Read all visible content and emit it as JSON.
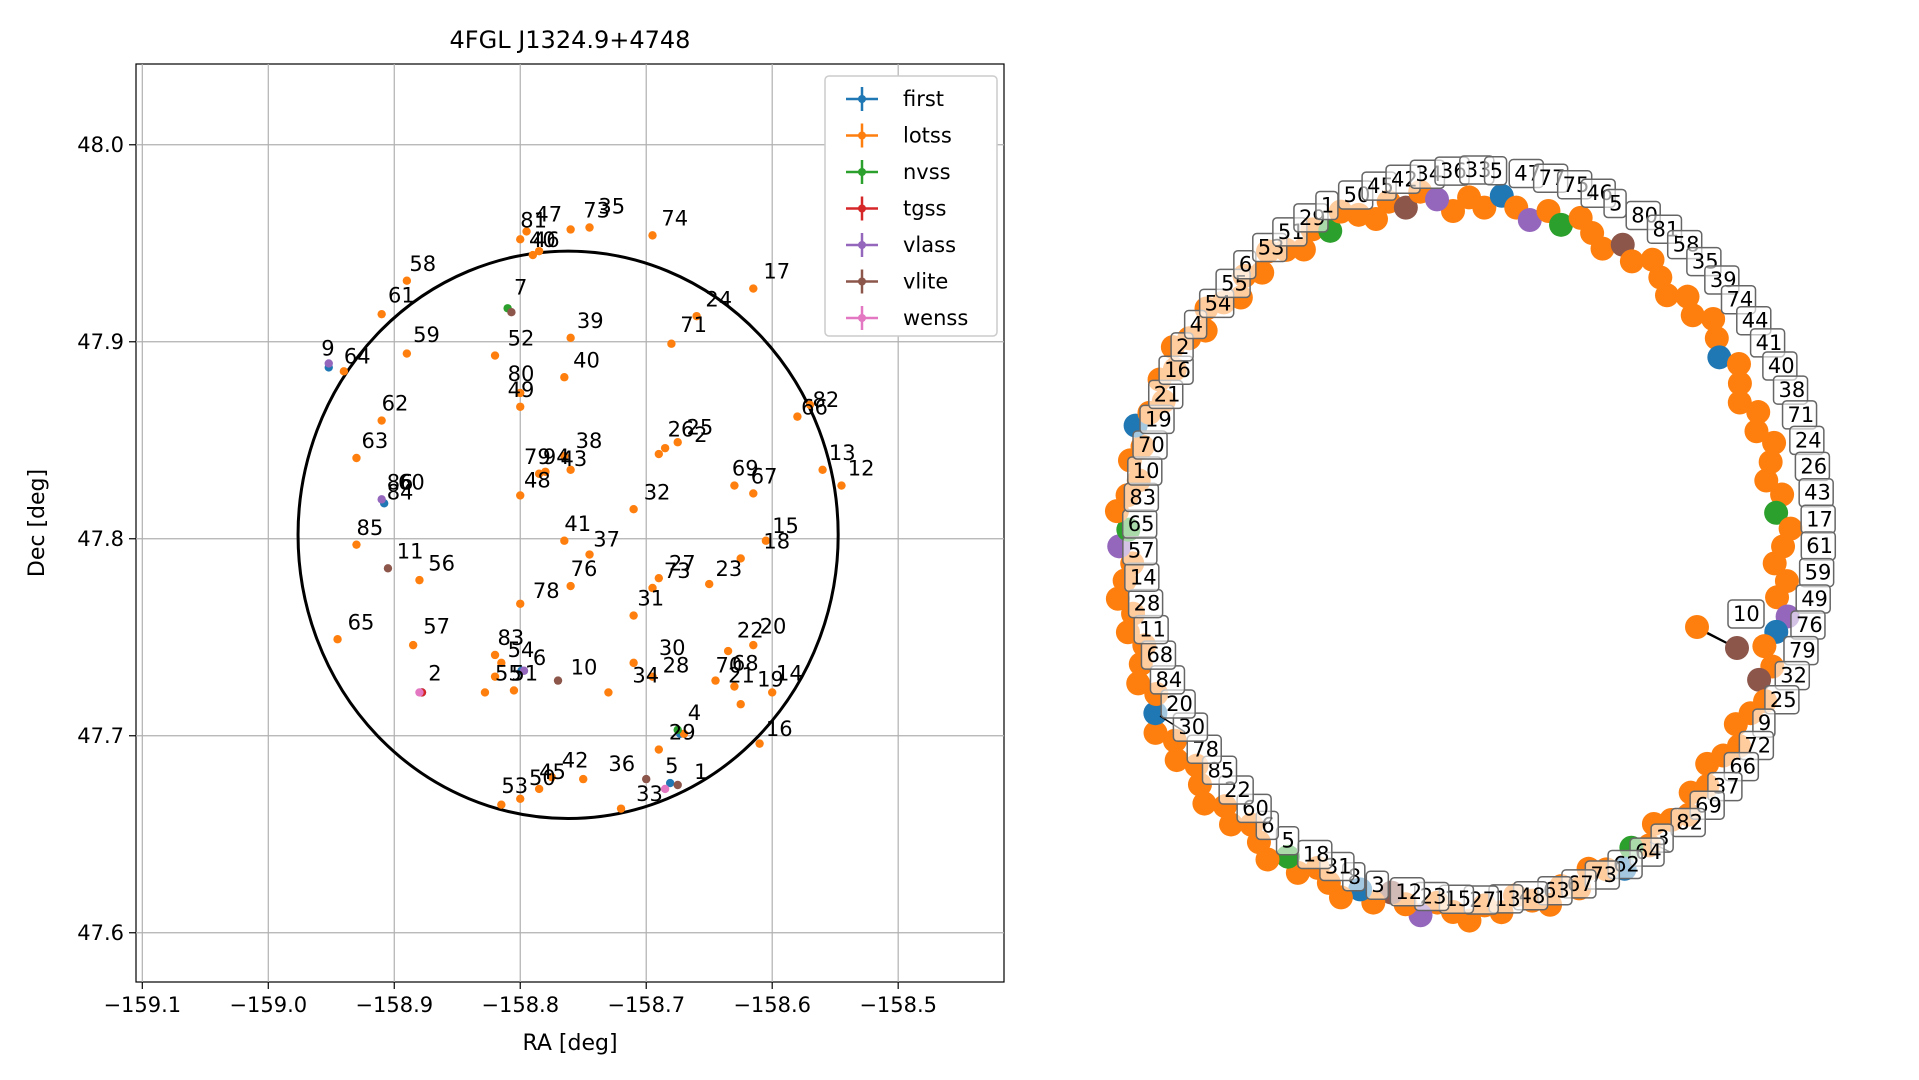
{
  "chart_data": [
    {
      "type": "scatter",
      "title": "4FGL J1324.9+4748",
      "xlabel": "RA [deg]",
      "ylabel": "Dec [deg]",
      "xlim": [
        -159.105,
        -158.416
      ],
      "ylim": [
        47.575,
        48.041
      ],
      "xticks": [
        -159.1,
        -159.0,
        -158.9,
        -158.8,
        -158.7,
        -158.6,
        -158.5
      ],
      "xtick_labels": [
        "−159.1",
        "−159.0",
        "−158.9",
        "−158.8",
        "−158.7",
        "−158.6",
        "−158.5"
      ],
      "yticks": [
        47.6,
        47.7,
        47.8,
        47.9,
        48.0
      ],
      "ytick_labels": [
        "47.6",
        "47.7",
        "47.8",
        "47.9",
        "48.0"
      ],
      "grid": true,
      "legend_position": "top-right",
      "circle": {
        "center": [
          -158.762,
          47.802
        ],
        "radius_deg": 0.144
      },
      "series": [
        {
          "name": "first",
          "color": "#1f77b4",
          "points": [
            [
              -158.952,
              47.887
            ],
            [
              -158.908,
              47.818
            ],
            [
              -158.878,
              47.722
            ],
            [
              -158.799,
              47.733
            ],
            [
              -158.681,
              47.676
            ],
            [
              -158.673,
              47.701
            ]
          ]
        },
        {
          "name": "lotss",
          "color": "#ff7f0e",
          "points": [
            [
              -158.8,
              47.952
            ],
            [
              -158.795,
              47.956
            ],
            [
              -158.79,
              47.944
            ],
            [
              -158.785,
              47.946
            ],
            [
              -158.76,
              47.957
            ],
            [
              -158.745,
              47.958
            ],
            [
              -158.695,
              47.954
            ],
            [
              -158.615,
              47.927
            ],
            [
              -158.66,
              47.913
            ],
            [
              -158.68,
              47.899
            ],
            [
              -158.76,
              47.902
            ],
            [
              -158.765,
              47.882
            ],
            [
              -158.82,
              47.893
            ],
            [
              -158.8,
              47.874
            ],
            [
              -158.8,
              47.867
            ],
            [
              -158.89,
              47.931
            ],
            [
              -158.91,
              47.914
            ],
            [
              -158.89,
              47.894
            ],
            [
              -158.94,
              47.885
            ],
            [
              -158.91,
              47.86
            ],
            [
              -158.93,
              47.841
            ],
            [
              -158.785,
              47.833
            ],
            [
              -158.78,
              47.834
            ],
            [
              -158.765,
              47.842
            ],
            [
              -158.76,
              47.835
            ],
            [
              -158.685,
              47.846
            ],
            [
              -158.69,
              47.843
            ],
            [
              -158.675,
              47.849
            ],
            [
              -158.63,
              47.827
            ],
            [
              -158.615,
              47.823
            ],
            [
              -158.58,
              47.862
            ],
            [
              -158.57,
              47.868
            ],
            [
              -158.56,
              47.835
            ],
            [
              -158.545,
              47.827
            ],
            [
              -158.71,
              47.815
            ],
            [
              -158.8,
              47.822
            ],
            [
              -158.765,
              47.799
            ],
            [
              -158.745,
              47.792
            ],
            [
              -158.605,
              47.799
            ],
            [
              -158.625,
              47.79
            ],
            [
              -158.69,
              47.78
            ],
            [
              -158.695,
              47.775
            ],
            [
              -158.65,
              47.777
            ],
            [
              -158.76,
              47.776
            ],
            [
              -158.8,
              47.767
            ],
            [
              -158.71,
              47.761
            ],
            [
              -158.93,
              47.797
            ],
            [
              -158.88,
              47.779
            ],
            [
              -158.945,
              47.749
            ],
            [
              -158.885,
              47.746
            ],
            [
              -158.82,
              47.741
            ],
            [
              -158.815,
              47.737
            ],
            [
              -158.82,
              47.73
            ],
            [
              -158.805,
              47.723
            ],
            [
              -158.828,
              47.722
            ],
            [
              -158.73,
              47.722
            ],
            [
              -158.71,
              47.737
            ],
            [
              -158.695,
              47.73
            ],
            [
              -158.635,
              47.743
            ],
            [
              -158.615,
              47.746
            ],
            [
              -158.645,
              47.728
            ],
            [
              -158.63,
              47.725
            ],
            [
              -158.625,
              47.716
            ],
            [
              -158.6,
              47.722
            ],
            [
              -158.61,
              47.696
            ],
            [
              -158.69,
              47.693
            ],
            [
              -158.67,
              47.701
            ],
            [
              -158.75,
              47.678
            ],
            [
              -158.775,
              47.679
            ],
            [
              -158.785,
              47.673
            ],
            [
              -158.8,
              47.668
            ],
            [
              -158.815,
              47.665
            ],
            [
              -158.72,
              47.663
            ]
          ]
        },
        {
          "name": "nvss",
          "color": "#2ca02c",
          "points": [
            [
              -158.81,
              47.917
            ],
            [
              -158.675,
              47.703
            ]
          ]
        },
        {
          "name": "tgss",
          "color": "#d62728",
          "points": [
            [
              -158.878,
              47.722
            ]
          ]
        },
        {
          "name": "vlass",
          "color": "#9467bd",
          "points": [
            [
              -158.952,
              47.889
            ],
            [
              -158.91,
              47.82
            ],
            [
              -158.797,
              47.733
            ]
          ]
        },
        {
          "name": "vlite",
          "color": "#8c564b",
          "points": [
            [
              -158.807,
              47.915
            ],
            [
              -158.905,
              47.785
            ],
            [
              -158.77,
              47.728
            ],
            [
              -158.7,
              47.678
            ],
            [
              -158.675,
              47.675
            ]
          ]
        },
        {
          "name": "wenss",
          "color": "#e377c2",
          "points": [
            [
              -158.88,
              47.722
            ],
            [
              -158.685,
              47.673
            ]
          ]
        }
      ],
      "labels": [
        [
          "81",
          -158.8,
          47.958
        ],
        [
          "47",
          -158.788,
          47.961
        ],
        [
          "73",
          -158.75,
          47.963
        ],
        [
          "35",
          -158.738,
          47.965
        ],
        [
          "74",
          -158.688,
          47.959
        ],
        [
          "46",
          -158.79,
          47.948
        ],
        [
          "40",
          -158.793,
          47.948
        ],
        [
          "17",
          -158.607,
          47.932
        ],
        [
          "58",
          -158.888,
          47.936
        ],
        [
          "61",
          -158.905,
          47.92
        ],
        [
          "24",
          -158.653,
          47.918
        ],
        [
          "7",
          -158.805,
          47.924
        ],
        [
          "39",
          -158.755,
          47.907
        ],
        [
          "71",
          -158.673,
          47.905
        ],
        [
          "59",
          -158.885,
          47.9
        ],
        [
          "52",
          -158.81,
          47.898
        ],
        [
          "9",
          -158.958,
          47.893
        ],
        [
          "64",
          -158.94,
          47.889
        ],
        [
          "40",
          -158.758,
          47.887
        ],
        [
          "80",
          -158.81,
          47.88
        ],
        [
          "49",
          -158.81,
          47.872
        ],
        [
          "82",
          -158.568,
          47.867
        ],
        [
          "66",
          -158.577,
          47.863
        ],
        [
          "62",
          -158.91,
          47.865
        ],
        [
          "38",
          -158.756,
          47.846
        ],
        [
          "26",
          -158.683,
          47.852
        ],
        [
          "25",
          -158.668,
          47.853
        ],
        [
          "2",
          -158.662,
          47.849
        ],
        [
          "63",
          -158.926,
          47.846
        ],
        [
          "79",
          -158.797,
          47.838
        ],
        [
          "94",
          -158.782,
          47.838
        ],
        [
          "43",
          -158.768,
          47.837
        ],
        [
          "13",
          -158.555,
          47.84
        ],
        [
          "12",
          -158.54,
          47.832
        ],
        [
          "69",
          -158.632,
          47.832
        ],
        [
          "67",
          -158.617,
          47.828
        ],
        [
          "86",
          -158.906,
          47.825
        ],
        [
          "60",
          -158.897,
          47.825
        ],
        [
          "84",
          -158.906,
          47.82
        ],
        [
          "48",
          -158.797,
          47.826
        ],
        [
          "32",
          -158.702,
          47.82
        ],
        [
          "15",
          -158.6,
          47.803
        ],
        [
          "85",
          -158.93,
          47.802
        ],
        [
          "41",
          -158.765,
          47.804
        ],
        [
          "37",
          -158.742,
          47.796
        ],
        [
          "18",
          -158.607,
          47.795
        ],
        [
          "11",
          -158.898,
          47.79
        ],
        [
          "56",
          -158.873,
          47.784
        ],
        [
          "27",
          -158.682,
          47.784
        ],
        [
          "73",
          -158.686,
          47.78
        ],
        [
          "23",
          -158.645,
          47.781
        ],
        [
          "76",
          -158.76,
          47.781
        ],
        [
          "78",
          -158.79,
          47.77
        ],
        [
          "31",
          -158.707,
          47.766
        ],
        [
          "65",
          -158.937,
          47.754
        ],
        [
          "57",
          -158.877,
          47.752
        ],
        [
          "22",
          -158.628,
          47.75
        ],
        [
          "20",
          -158.61,
          47.752
        ],
        [
          "83",
          -158.818,
          47.746
        ],
        [
          "54",
          -158.81,
          47.74
        ],
        [
          "6",
          -158.79,
          47.736
        ],
        [
          "10",
          -158.76,
          47.731
        ],
        [
          "30",
          -158.69,
          47.741
        ],
        [
          "28",
          -158.687,
          47.732
        ],
        [
          "70",
          -158.645,
          47.732
        ],
        [
          "68",
          -158.632,
          47.733
        ],
        [
          "34",
          -158.711,
          47.727
        ],
        [
          "55",
          -158.82,
          47.728
        ],
        [
          "51",
          -158.807,
          47.728
        ],
        [
          "2",
          -158.873,
          47.728
        ],
        [
          "21",
          -158.635,
          47.727
        ],
        [
          "19",
          -158.612,
          47.725
        ],
        [
          "14",
          -158.597,
          47.728
        ],
        [
          "4",
          -158.667,
          47.708
        ],
        [
          "29",
          -158.682,
          47.698
        ],
        [
          "16",
          -158.605,
          47.7
        ],
        [
          "42",
          -158.767,
          47.684
        ],
        [
          "36",
          -158.73,
          47.682
        ],
        [
          "5",
          -158.685,
          47.681
        ],
        [
          "1",
          -158.662,
          47.678
        ],
        [
          "45",
          -158.785,
          47.678
        ],
        [
          "50",
          -158.793,
          47.675
        ],
        [
          "53",
          -158.815,
          47.671
        ],
        [
          "33",
          -158.708,
          47.667
        ]
      ]
    },
    {
      "type": "scatter",
      "title": "",
      "description_free": true,
      "series": [
        {
          "name": "",
          "color": "#ff7f0e",
          "points": []
        }
      ],
      "labels": [
        "47",
        "77",
        "75",
        "46",
        "5",
        "80",
        "81",
        "58",
        "35",
        "39",
        "74",
        "44",
        "41",
        "40",
        "38",
        "71",
        "24",
        "26",
        "43",
        "17",
        "61",
        "59",
        "49",
        "76",
        "79",
        "32",
        "25",
        "9",
        "72",
        "66",
        "37",
        "69",
        "82",
        "3",
        "64",
        "62",
        "73",
        "67",
        "63",
        "48",
        "13",
        "27",
        "15",
        "23",
        "12",
        "3",
        "8",
        "31",
        "18",
        "5",
        "6",
        "60",
        "22",
        "85",
        "78",
        "30",
        "20",
        "84",
        "68",
        "11",
        "28",
        "14",
        "57",
        "65",
        "83",
        "10",
        "70",
        "19",
        "21",
        "16",
        "2",
        "4",
        "54",
        "55",
        "6",
        "53",
        "51",
        "29",
        "1",
        "50",
        "45",
        "42",
        "34",
        "36",
        "33",
        "5"
      ]
    }
  ]
}
